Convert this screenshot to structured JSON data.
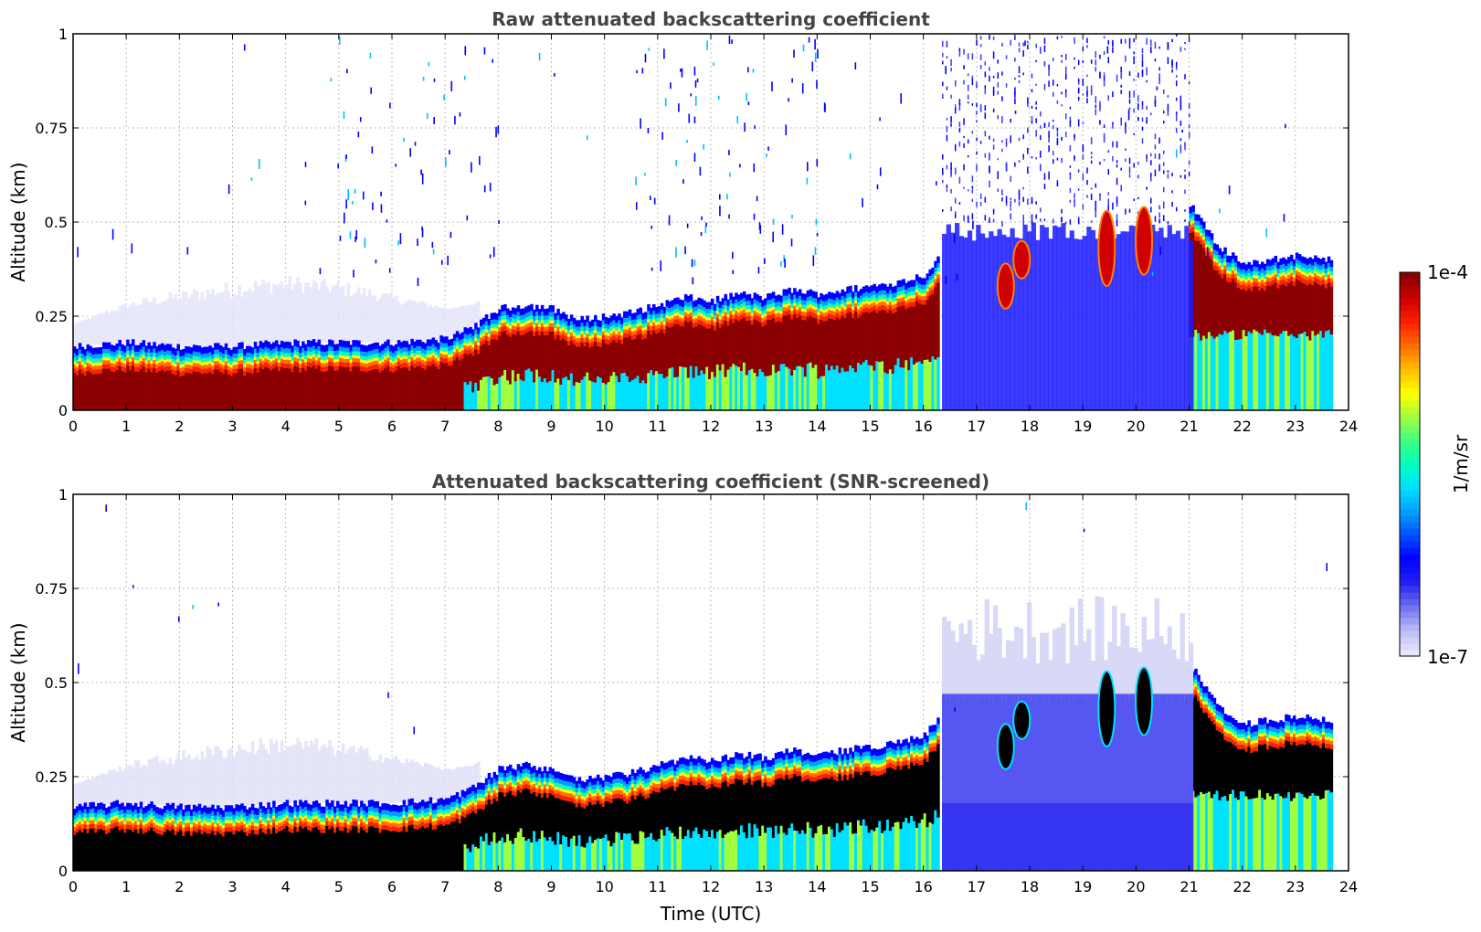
{
  "chart_data": [
    {
      "type": "heatmap",
      "title": "Raw attenuated backscattering coefficient",
      "xlabel": "",
      "ylabel": "Altitude (km)",
      "xlim": [
        0,
        24
      ],
      "ylim": [
        0,
        1
      ],
      "xticks": [
        "0",
        "1",
        "2",
        "3",
        "4",
        "5",
        "6",
        "7",
        "8",
        "9",
        "10",
        "11",
        "12",
        "13",
        "14",
        "15",
        "16",
        "17",
        "18",
        "19",
        "20",
        "21",
        "22",
        "23",
        "24"
      ],
      "yticks": [
        "0",
        "0.25",
        "0.5",
        "0.75",
        "1"
      ],
      "grid": true,
      "layer_top_km": [
        [
          0,
          0.17
        ],
        [
          1,
          0.18
        ],
        [
          2,
          0.17
        ],
        [
          3,
          0.17
        ],
        [
          4,
          0.18
        ],
        [
          5,
          0.18
        ],
        [
          6,
          0.18
        ],
        [
          7,
          0.19
        ],
        [
          7.5,
          0.22
        ],
        [
          8,
          0.27
        ],
        [
          8.5,
          0.28
        ],
        [
          9,
          0.27
        ],
        [
          9.5,
          0.24
        ],
        [
          10,
          0.25
        ],
        [
          10.5,
          0.26
        ],
        [
          11,
          0.28
        ],
        [
          11.5,
          0.3
        ],
        [
          12,
          0.29
        ],
        [
          12.5,
          0.31
        ],
        [
          13,
          0.3
        ],
        [
          13.5,
          0.32
        ],
        [
          14,
          0.31
        ],
        [
          14.5,
          0.32
        ],
        [
          15,
          0.33
        ],
        [
          15.5,
          0.34
        ],
        [
          16,
          0.36
        ],
        [
          16.3,
          0.41
        ],
        [
          21,
          0.55
        ],
        [
          21.5,
          0.44
        ],
        [
          22,
          0.39
        ],
        [
          22.5,
          0.4
        ],
        [
          23,
          0.41
        ],
        [
          23.7,
          0.4
        ]
      ],
      "notes": "Dense noise 16.4-21 UTC; saturated layer (red) beneath layer top"
    },
    {
      "type": "heatmap",
      "title": "Attenuated backscattering coefficient (SNR-screened)",
      "xlabel": "Time (UTC)",
      "ylabel": "Altitude (km)",
      "xlim": [
        0,
        24
      ],
      "ylim": [
        0,
        1
      ],
      "xticks": [
        "0",
        "1",
        "2",
        "3",
        "4",
        "5",
        "6",
        "7",
        "8",
        "9",
        "10",
        "11",
        "12",
        "13",
        "14",
        "15",
        "16",
        "17",
        "18",
        "19",
        "20",
        "21",
        "22",
        "23",
        "24"
      ],
      "yticks": [
        "0",
        "0.25",
        "0.5",
        "0.75",
        "1"
      ],
      "grid": true,
      "layer_top_km": [
        [
          0,
          0.17
        ],
        [
          1,
          0.18
        ],
        [
          2,
          0.17
        ],
        [
          3,
          0.17
        ],
        [
          4,
          0.18
        ],
        [
          5,
          0.18
        ],
        [
          6,
          0.18
        ],
        [
          7,
          0.19
        ],
        [
          7.5,
          0.22
        ],
        [
          8,
          0.27
        ],
        [
          8.5,
          0.28
        ],
        [
          9,
          0.27
        ],
        [
          9.5,
          0.24
        ],
        [
          10,
          0.25
        ],
        [
          10.5,
          0.26
        ],
        [
          11,
          0.28
        ],
        [
          11.5,
          0.3
        ],
        [
          12,
          0.29
        ],
        [
          12.5,
          0.31
        ],
        [
          13,
          0.3
        ],
        [
          13.5,
          0.32
        ],
        [
          14,
          0.31
        ],
        [
          14.5,
          0.32
        ],
        [
          15,
          0.33
        ],
        [
          15.5,
          0.34
        ],
        [
          16,
          0.36
        ],
        [
          16.3,
          0.41
        ],
        [
          21,
          0.55
        ],
        [
          21.5,
          0.44
        ],
        [
          22,
          0.39
        ],
        [
          22.5,
          0.4
        ],
        [
          23,
          0.41
        ],
        [
          23.7,
          0.4
        ]
      ],
      "notes": "Saturated core shown black; low-SNR region 16.4-21 UTC screened to light blue"
    }
  ],
  "colorbar": {
    "label": "1/m/sr",
    "max_label": "1e-4",
    "min_label": "1e-7",
    "colors": [
      "#e8e8fa",
      "#b9b9f5",
      "#6c6cf0",
      "#2020f0",
      "#0000ff",
      "#0050ff",
      "#00a0ff",
      "#00e0ff",
      "#00ffc0",
      "#40ff80",
      "#a0ff40",
      "#ffff00",
      "#ffc000",
      "#ff7000",
      "#ff2000",
      "#d00000",
      "#8b0000"
    ]
  },
  "colors": {
    "saturated_raw": "#8b0000",
    "saturated_screened": "#000000",
    "grid": "#bbbbbb"
  }
}
